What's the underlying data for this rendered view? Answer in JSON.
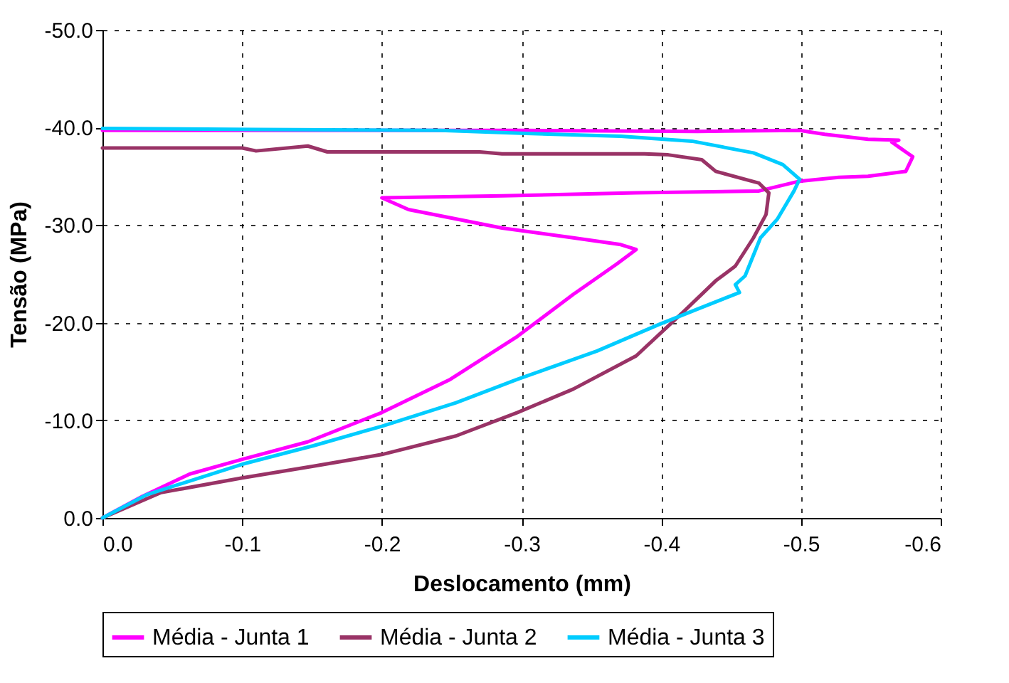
{
  "chart_data": {
    "type": "line",
    "xlabel": "Deslocamento (mm)",
    "ylabel": "Tensão (MPa)",
    "xlim": [
      0,
      -0.6
    ],
    "xticks": [
      {
        "value": 0,
        "label": "0.0"
      },
      {
        "value": -0.1,
        "label": "-0.1"
      },
      {
        "value": -0.2,
        "label": "-0.2"
      },
      {
        "value": -0.3,
        "label": "-0.3"
      },
      {
        "value": -0.4,
        "label": "-0.4"
      },
      {
        "value": -0.5,
        "label": "-0.5"
      },
      {
        "value": -0.6,
        "label": "-0.6"
      }
    ],
    "ylim": [
      0,
      -50
    ],
    "yticks": [
      {
        "value": 0,
        "label": "0.0"
      },
      {
        "value": -10,
        "label": "-10.0"
      },
      {
        "value": -20,
        "label": "-20.0"
      },
      {
        "value": -30,
        "label": "-30.0"
      },
      {
        "value": -40,
        "label": "-40.0"
      },
      {
        "value": -50,
        "label": "-50.0"
      }
    ],
    "grid": true,
    "legend": "bottom",
    "line_style": "solid",
    "marker": "none",
    "series": [
      {
        "name": "Média - Junta 1",
        "color": "#ff00ff",
        "x": [
          0,
          -0.0285,
          -0.0625,
          -0.1,
          -0.147,
          -0.2,
          -0.249,
          -0.297,
          -0.337,
          -0.368,
          -0.382,
          -0.371,
          -0.337,
          -0.286,
          -0.219,
          -0.2,
          -0.286,
          -0.382,
          -0.47,
          -0.499,
          -0.527,
          -0.548,
          -0.575,
          -0.58,
          -0.57,
          -0.565,
          -0.57,
          -0.548,
          -0.517,
          -0.499,
          -0.426,
          -0.3,
          -0.2,
          -0.1,
          0
        ],
        "values": [
          0,
          -2.2,
          -4.5,
          -6.0,
          -7.8,
          -10.8,
          -14.2,
          -18.6,
          -22.9,
          -26.0,
          -27.5,
          -28.0,
          -28.7,
          -29.7,
          -31.6,
          -32.8,
          -33.0,
          -33.3,
          -33.5,
          -34.5,
          -34.9,
          -35.0,
          -35.5,
          -37.0,
          -38.0,
          -38.5,
          -38.7,
          -38.8,
          -39.3,
          -39.7,
          -39.6,
          -39.7,
          -39.7,
          -39.7,
          -39.7
        ]
      },
      {
        "name": "Média - Junta 2",
        "color": "#993366",
        "x": [
          0,
          -0.042,
          -0.1,
          -0.151,
          -0.2,
          -0.253,
          -0.297,
          -0.337,
          -0.382,
          -0.415,
          -0.439,
          -0.453,
          -0.466,
          -0.475,
          -0.477,
          -0.47,
          -0.439,
          -0.429,
          -0.405,
          -0.388,
          -0.286,
          -0.27,
          -0.161,
          -0.147,
          -0.11,
          -0.1,
          0
        ],
        "values": [
          0,
          -2.6,
          -4.1,
          -5.3,
          -6.5,
          -8.4,
          -10.8,
          -13.2,
          -16.6,
          -21.0,
          -24.3,
          -25.8,
          -28.7,
          -31.1,
          -33.3,
          -34.3,
          -35.5,
          -36.7,
          -37.2,
          -37.3,
          -37.3,
          -37.5,
          -37.5,
          -38.1,
          -37.6,
          -37.9,
          -37.9
        ]
      },
      {
        "name": "Média - Junta 3",
        "color": "#00ccff",
        "x": [
          0,
          -0.032,
          -0.1,
          -0.151,
          -0.2,
          -0.253,
          -0.297,
          -0.354,
          -0.398,
          -0.426,
          -0.456,
          -0.453,
          -0.46,
          -0.471,
          -0.483,
          -0.495,
          -0.499,
          -0.487,
          -0.466,
          -0.422,
          -0.371,
          -0.303,
          -0.242,
          -0.11,
          0
        ],
        "values": [
          0,
          -2.4,
          -5.5,
          -7.4,
          -9.4,
          -11.8,
          -14.2,
          -17.1,
          -19.8,
          -21.4,
          -23.1,
          -23.9,
          -24.8,
          -28.7,
          -30.6,
          -33.5,
          -34.7,
          -36.2,
          -37.4,
          -38.6,
          -39.1,
          -39.4,
          -39.7,
          -39.8,
          -39.9
        ]
      }
    ]
  }
}
